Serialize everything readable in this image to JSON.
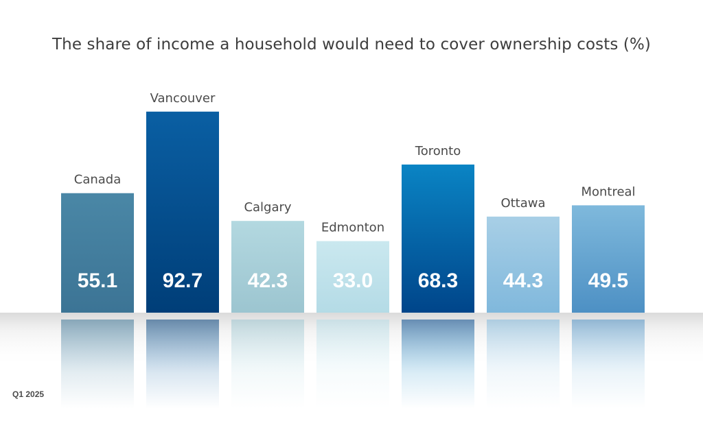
{
  "chart_data": {
    "type": "bar",
    "title": "The share of income a household would need to cover ownership costs (%)",
    "categories": [
      "Canada",
      "Vancouver",
      "Calgary",
      "Edmonton",
      "Toronto",
      "Ottawa",
      "Montreal"
    ],
    "values": [
      55.1,
      92.7,
      42.3,
      33.0,
      68.3,
      44.3,
      49.5
    ],
    "value_labels": [
      "55.1",
      "92.7",
      "42.3",
      "33.0",
      "68.3",
      "44.3",
      "49.5"
    ],
    "xlabel": "",
    "ylabel": "",
    "ylim": [
      0,
      100
    ],
    "grid": false,
    "legend": "none",
    "category_labels_position": "above-bars",
    "value_labels_position": "inside-bar-bottom",
    "bar_colors": [
      [
        "#4a87a6",
        "#3c7495"
      ],
      [
        "#0a5fa3",
        "#003e78"
      ],
      [
        "#b3d8e0",
        "#9cc5d0"
      ],
      [
        "#cae8ef",
        "#b4dbe6"
      ],
      [
        "#0a84c4",
        "#00458a"
      ],
      [
        "#a8cfe6",
        "#80b8dc"
      ],
      [
        "#7fb9dc",
        "#4d90c4"
      ]
    ],
    "footnote": "Q1 2025"
  }
}
